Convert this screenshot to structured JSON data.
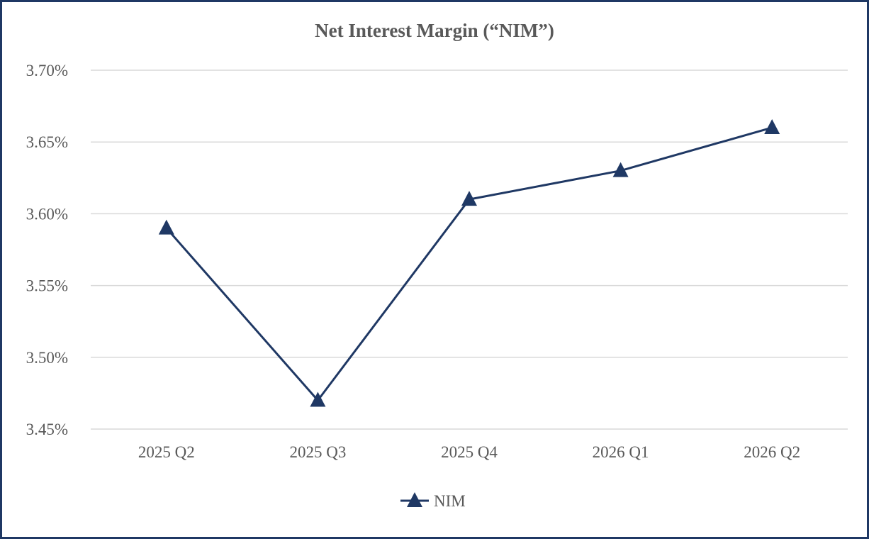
{
  "chart_data": {
    "type": "line",
    "title": "Net Interest Margin (“NIM”)",
    "xlabel": "",
    "ylabel": "",
    "categories": [
      "2025 Q2",
      "2025 Q3",
      "2025 Q4",
      "2026 Q1",
      "2026 Q2"
    ],
    "series": [
      {
        "name": "NIM",
        "values": [
          3.59,
          3.47,
          3.61,
          3.63,
          3.66
        ],
        "color": "#1f3864",
        "marker": "triangle"
      }
    ],
    "yticks": [
      "3.45%",
      "3.50%",
      "3.55%",
      "3.60%",
      "3.65%",
      "3.70%"
    ],
    "ylim": [
      3.45,
      3.7
    ],
    "grid": true,
    "legend_position": "bottom"
  },
  "colors": {
    "border": "#1f3864",
    "series": "#1f3864",
    "grid": "#d9d9d9",
    "text": "#595959"
  }
}
